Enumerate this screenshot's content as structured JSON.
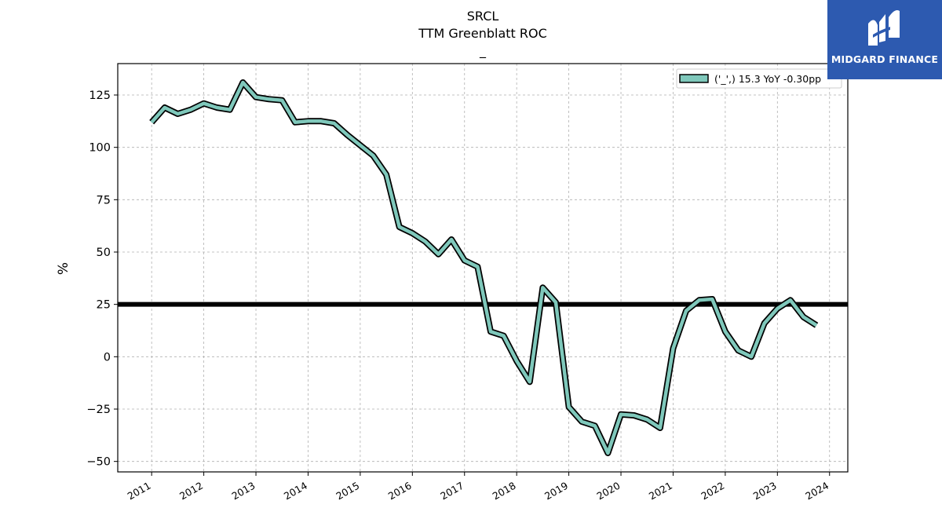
{
  "header": {
    "title": "SRCL",
    "subtitle": "TTM Greenblatt ROC",
    "note": "_"
  },
  "logo": {
    "text": "MIDGARD FINANCE",
    "background": "#2d5ab0"
  },
  "chart_data": {
    "type": "line",
    "ylabel": "%",
    "ylim": [
      -55,
      140
    ],
    "yticks": [
      -50,
      -25,
      0,
      25,
      50,
      75,
      100,
      125
    ],
    "ytick_labels": [
      "−50",
      "−25",
      "0",
      "25",
      "50",
      "75",
      "100",
      "125"
    ],
    "xlim": [
      2010.35,
      2024.35
    ],
    "xticks": [
      2011,
      2012,
      2013,
      2014,
      2015,
      2016,
      2017,
      2018,
      2019,
      2020,
      2021,
      2022,
      2023,
      2024
    ],
    "xtick_labels": [
      "2011",
      "2012",
      "2013",
      "2014",
      "2015",
      "2016",
      "2017",
      "2018",
      "2019",
      "2020",
      "2021",
      "2022",
      "2023",
      "2024"
    ],
    "grid": true,
    "legend_position": "top-right",
    "series": [
      {
        "name": "('_',) 15.3 YoY -0.30pp",
        "color": "#7fc8bb",
        "edge_color": "#000000",
        "x": [
          2011.0,
          2011.25,
          2011.5,
          2011.75,
          2012.0,
          2012.25,
          2012.5,
          2012.75,
          2013.0,
          2013.25,
          2013.5,
          2013.75,
          2014.0,
          2014.25,
          2014.5,
          2014.75,
          2015.0,
          2015.25,
          2015.5,
          2015.75,
          2016.0,
          2016.25,
          2016.5,
          2016.75,
          2017.0,
          2017.25,
          2017.5,
          2017.75,
          2018.0,
          2018.25,
          2018.5,
          2018.75,
          2019.0,
          2019.25,
          2019.5,
          2019.75,
          2020.0,
          2020.25,
          2020.5,
          2020.75,
          2021.0,
          2021.25,
          2021.5,
          2021.75,
          2022.0,
          2022.25,
          2022.5,
          2022.75,
          2023.0,
          2023.25,
          2023.5,
          2023.75
        ],
        "y": [
          112,
          119,
          116,
          118,
          121,
          119,
          118,
          131,
          124,
          123,
          122.5,
          112,
          112.5,
          112.5,
          111.5,
          106,
          101,
          96,
          87,
          62,
          59,
          55,
          49,
          56,
          46,
          43,
          12,
          10,
          -2,
          -12,
          33,
          26,
          -24,
          -31,
          -33,
          -46,
          -27.5,
          -28,
          -30,
          -34,
          4,
          22,
          27,
          27.5,
          12,
          3,
          0,
          16,
          23,
          27,
          19,
          15
        ]
      }
    ],
    "reference_line": {
      "y": 25,
      "color": "#000000"
    }
  }
}
